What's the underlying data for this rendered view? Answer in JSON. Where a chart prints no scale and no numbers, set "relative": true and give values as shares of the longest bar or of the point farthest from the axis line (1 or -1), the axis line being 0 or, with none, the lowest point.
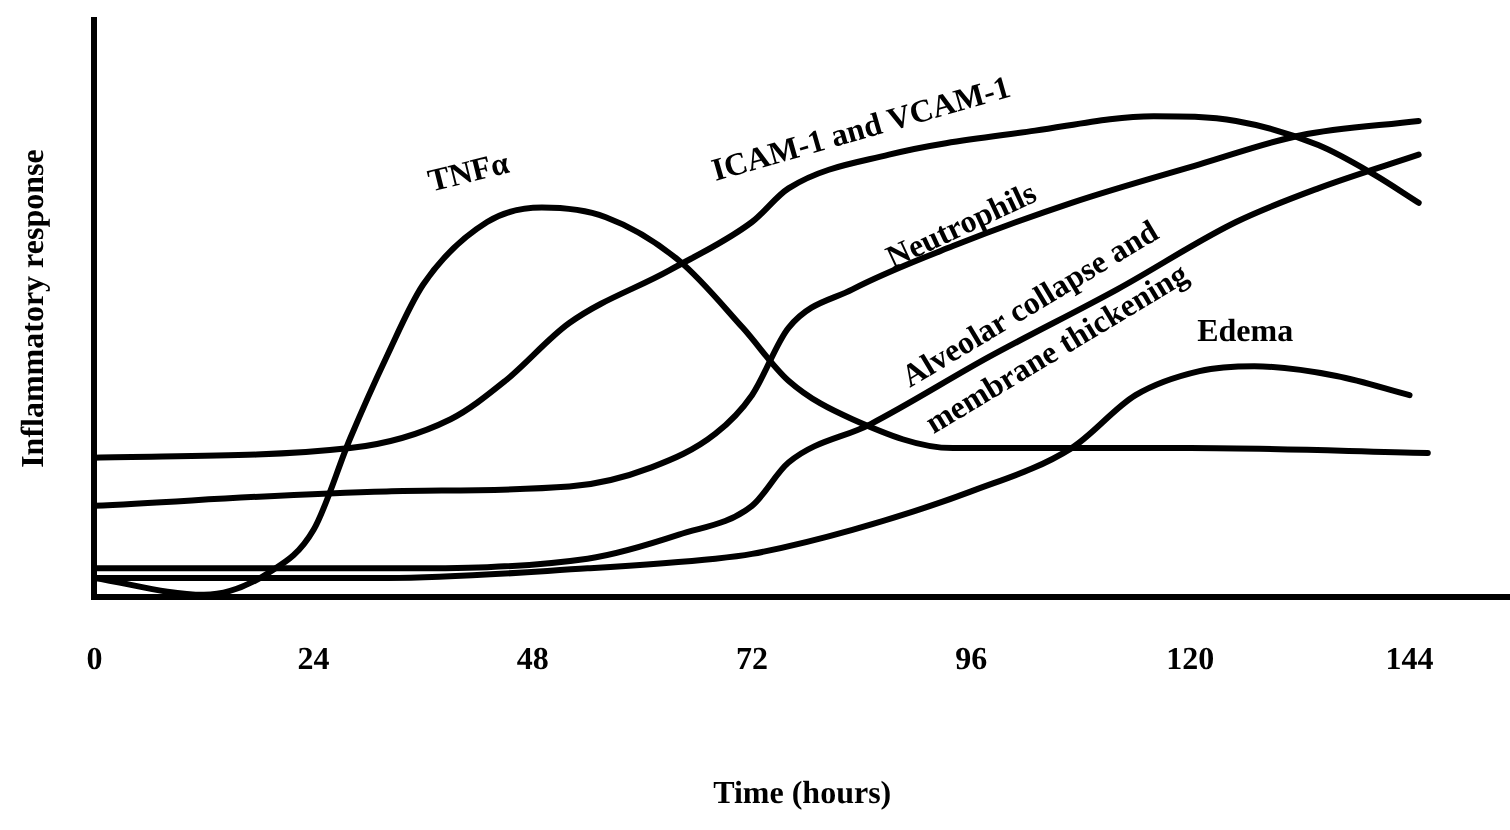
{
  "chart_data": {
    "type": "line",
    "xlabel": "Time (hours)",
    "ylabel": "Inflammatory response",
    "relative": true,
    "xlim": [
      0,
      155
    ],
    "xticks": [
      0,
      24,
      48,
      72,
      96,
      120,
      144
    ],
    "grid": false,
    "legend": false,
    "marker": "none",
    "line_style": "solid",
    "series": [
      {
        "name": "TNFα",
        "color": "#000000",
        "x": [
          0,
          12,
          19,
          24,
          28,
          32,
          36,
          43,
          49,
          56,
          64,
          71,
          76,
          83,
          94,
          120,
          146
        ],
        "values": [
          0.04,
          0.005,
          0.05,
          0.14,
          0.33,
          0.5,
          0.65,
          0.78,
          0.81,
          0.79,
          0.7,
          0.56,
          0.45,
          0.37,
          0.31,
          0.31,
          0.3
        ]
      },
      {
        "name": "ICAM-1 and VCAM-1",
        "color": "#000000",
        "x": [
          0,
          28,
          39,
          45,
          52,
          63,
          72,
          76,
          87,
          103,
          116,
          125,
          134,
          140,
          145
        ],
        "values": [
          0.29,
          0.31,
          0.37,
          0.45,
          0.57,
          0.68,
          0.78,
          0.85,
          0.92,
          0.97,
          1,
          0.99,
          0.94,
          0.88,
          0.82
        ]
      },
      {
        "name": "Neutrophils",
        "color": "#000000",
        "x": [
          0,
          32,
          52,
          61,
          68,
          72,
          76,
          83,
          94,
          107,
          121,
          132,
          145
        ],
        "values": [
          0.19,
          0.22,
          0.23,
          0.27,
          0.34,
          0.42,
          0.56,
          0.64,
          0.73,
          0.82,
          0.9,
          0.96,
          0.99
        ]
      },
      {
        "name": "Alveolar collapse and membrane thickening",
        "color": "#000000",
        "x": [
          0,
          32,
          54,
          64,
          72,
          76,
          85,
          98,
          112,
          125,
          134,
          145
        ],
        "values": [
          0.06,
          0.06,
          0.08,
          0.13,
          0.19,
          0.28,
          0.36,
          0.5,
          0.64,
          0.78,
          0.85,
          0.92
        ]
      },
      {
        "name": "Edema",
        "color": "#000000",
        "x": [
          0,
          32,
          54,
          68,
          72,
          83,
          96,
          107,
          114,
          121,
          127,
          136,
          144
        ],
        "values": [
          0.04,
          0.04,
          0.06,
          0.08,
          0.09,
          0.14,
          0.22,
          0.31,
          0.42,
          0.47,
          0.48,
          0.46,
          0.42
        ]
      }
    ]
  }
}
